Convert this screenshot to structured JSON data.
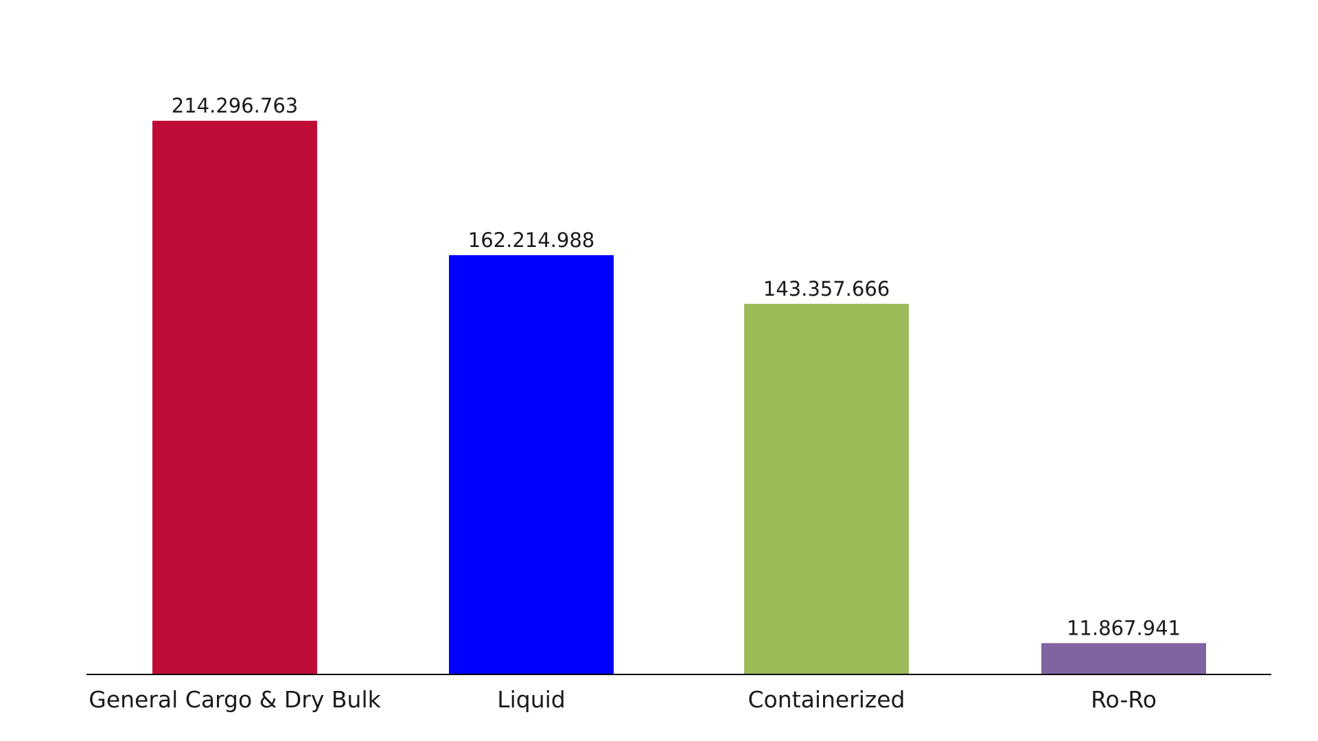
{
  "chart_data": {
    "type": "bar",
    "categories": [
      "General Cargo & Dry Bulk",
      "Liquid",
      "Containerized",
      "Ro-Ro"
    ],
    "values": [
      214296763,
      162214988,
      143357666,
      11867941
    ],
    "data_labels": [
      "214.296.763",
      "162.214.988",
      "143.357.666",
      "11.867.941"
    ],
    "colors": [
      "#C00D37",
      "#0000FF",
      "#9BBB59",
      "#8064A2"
    ],
    "title": "",
    "xlabel": "",
    "ylabel": "",
    "ylim": [
      0,
      214296763
    ],
    "grid": false,
    "legend": "none"
  }
}
